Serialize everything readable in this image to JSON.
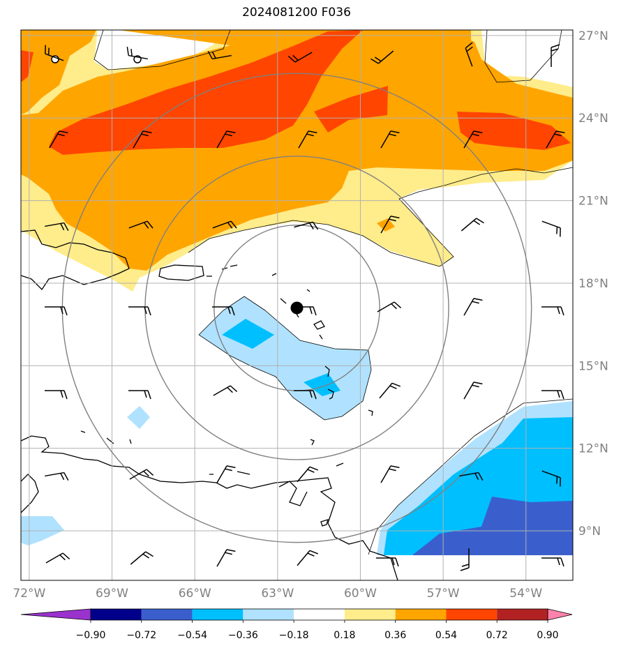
{
  "title": "2024081200 F036",
  "map": {
    "lon_range": [
      -72.3,
      -52.3
    ],
    "lat_range": [
      7.2,
      27.2
    ],
    "lat_ticks": [
      {
        "value": 27,
        "label": "27°N"
      },
      {
        "value": 24,
        "label": "24°N"
      },
      {
        "value": 21,
        "label": "21°N"
      },
      {
        "value": 18,
        "label": "18°N"
      },
      {
        "value": 15,
        "label": "15°N"
      },
      {
        "value": 12,
        "label": "12°N"
      },
      {
        "value": 9,
        "label": "9°N"
      }
    ],
    "lon_ticks": [
      {
        "value": -72,
        "label": "72°W"
      },
      {
        "value": -69,
        "label": "69°W"
      },
      {
        "value": -66,
        "label": "66°W"
      },
      {
        "value": -63,
        "label": "63°W"
      },
      {
        "value": -60,
        "label": "60°W"
      },
      {
        "value": -57,
        "label": "57°W"
      },
      {
        "value": -54,
        "label": "54°W"
      }
    ],
    "center_marker": {
      "lon": -62.3,
      "lat": 17.1
    },
    "range_rings_deg": [
      3,
      5.5,
      8.5
    ],
    "colors": {
      "neg_very_strong": "#9a32cd",
      "neg_090": "#00008b",
      "neg_072": "#3a5fcd",
      "neg_054": "#00bfff",
      "neg_036": "#b0e2ff",
      "neutral": "#ffffff",
      "pos_018": "#ffec8b",
      "pos_036": "#ffa500",
      "pos_054": "#ff4500",
      "pos_072": "#b22222",
      "pos_090": "#ff82ab",
      "coast": "#000000",
      "grid": "#b0b0b0",
      "ring": "#808080"
    }
  },
  "colorbar": {
    "labels": [
      "−0.90",
      "−0.72",
      "−0.54",
      "−0.36",
      "−0.18",
      "0.18",
      "0.36",
      "0.54",
      "0.72",
      "0.90"
    ],
    "segment_colors": [
      "#00008b",
      "#3a5fcd",
      "#00bfff",
      "#b0e2ff",
      "#ffffff",
      "#ffec8b",
      "#ffa500",
      "#ff4500",
      "#b22222"
    ],
    "under_color": "#9a32cd",
    "over_color": "#ff82ab"
  }
}
